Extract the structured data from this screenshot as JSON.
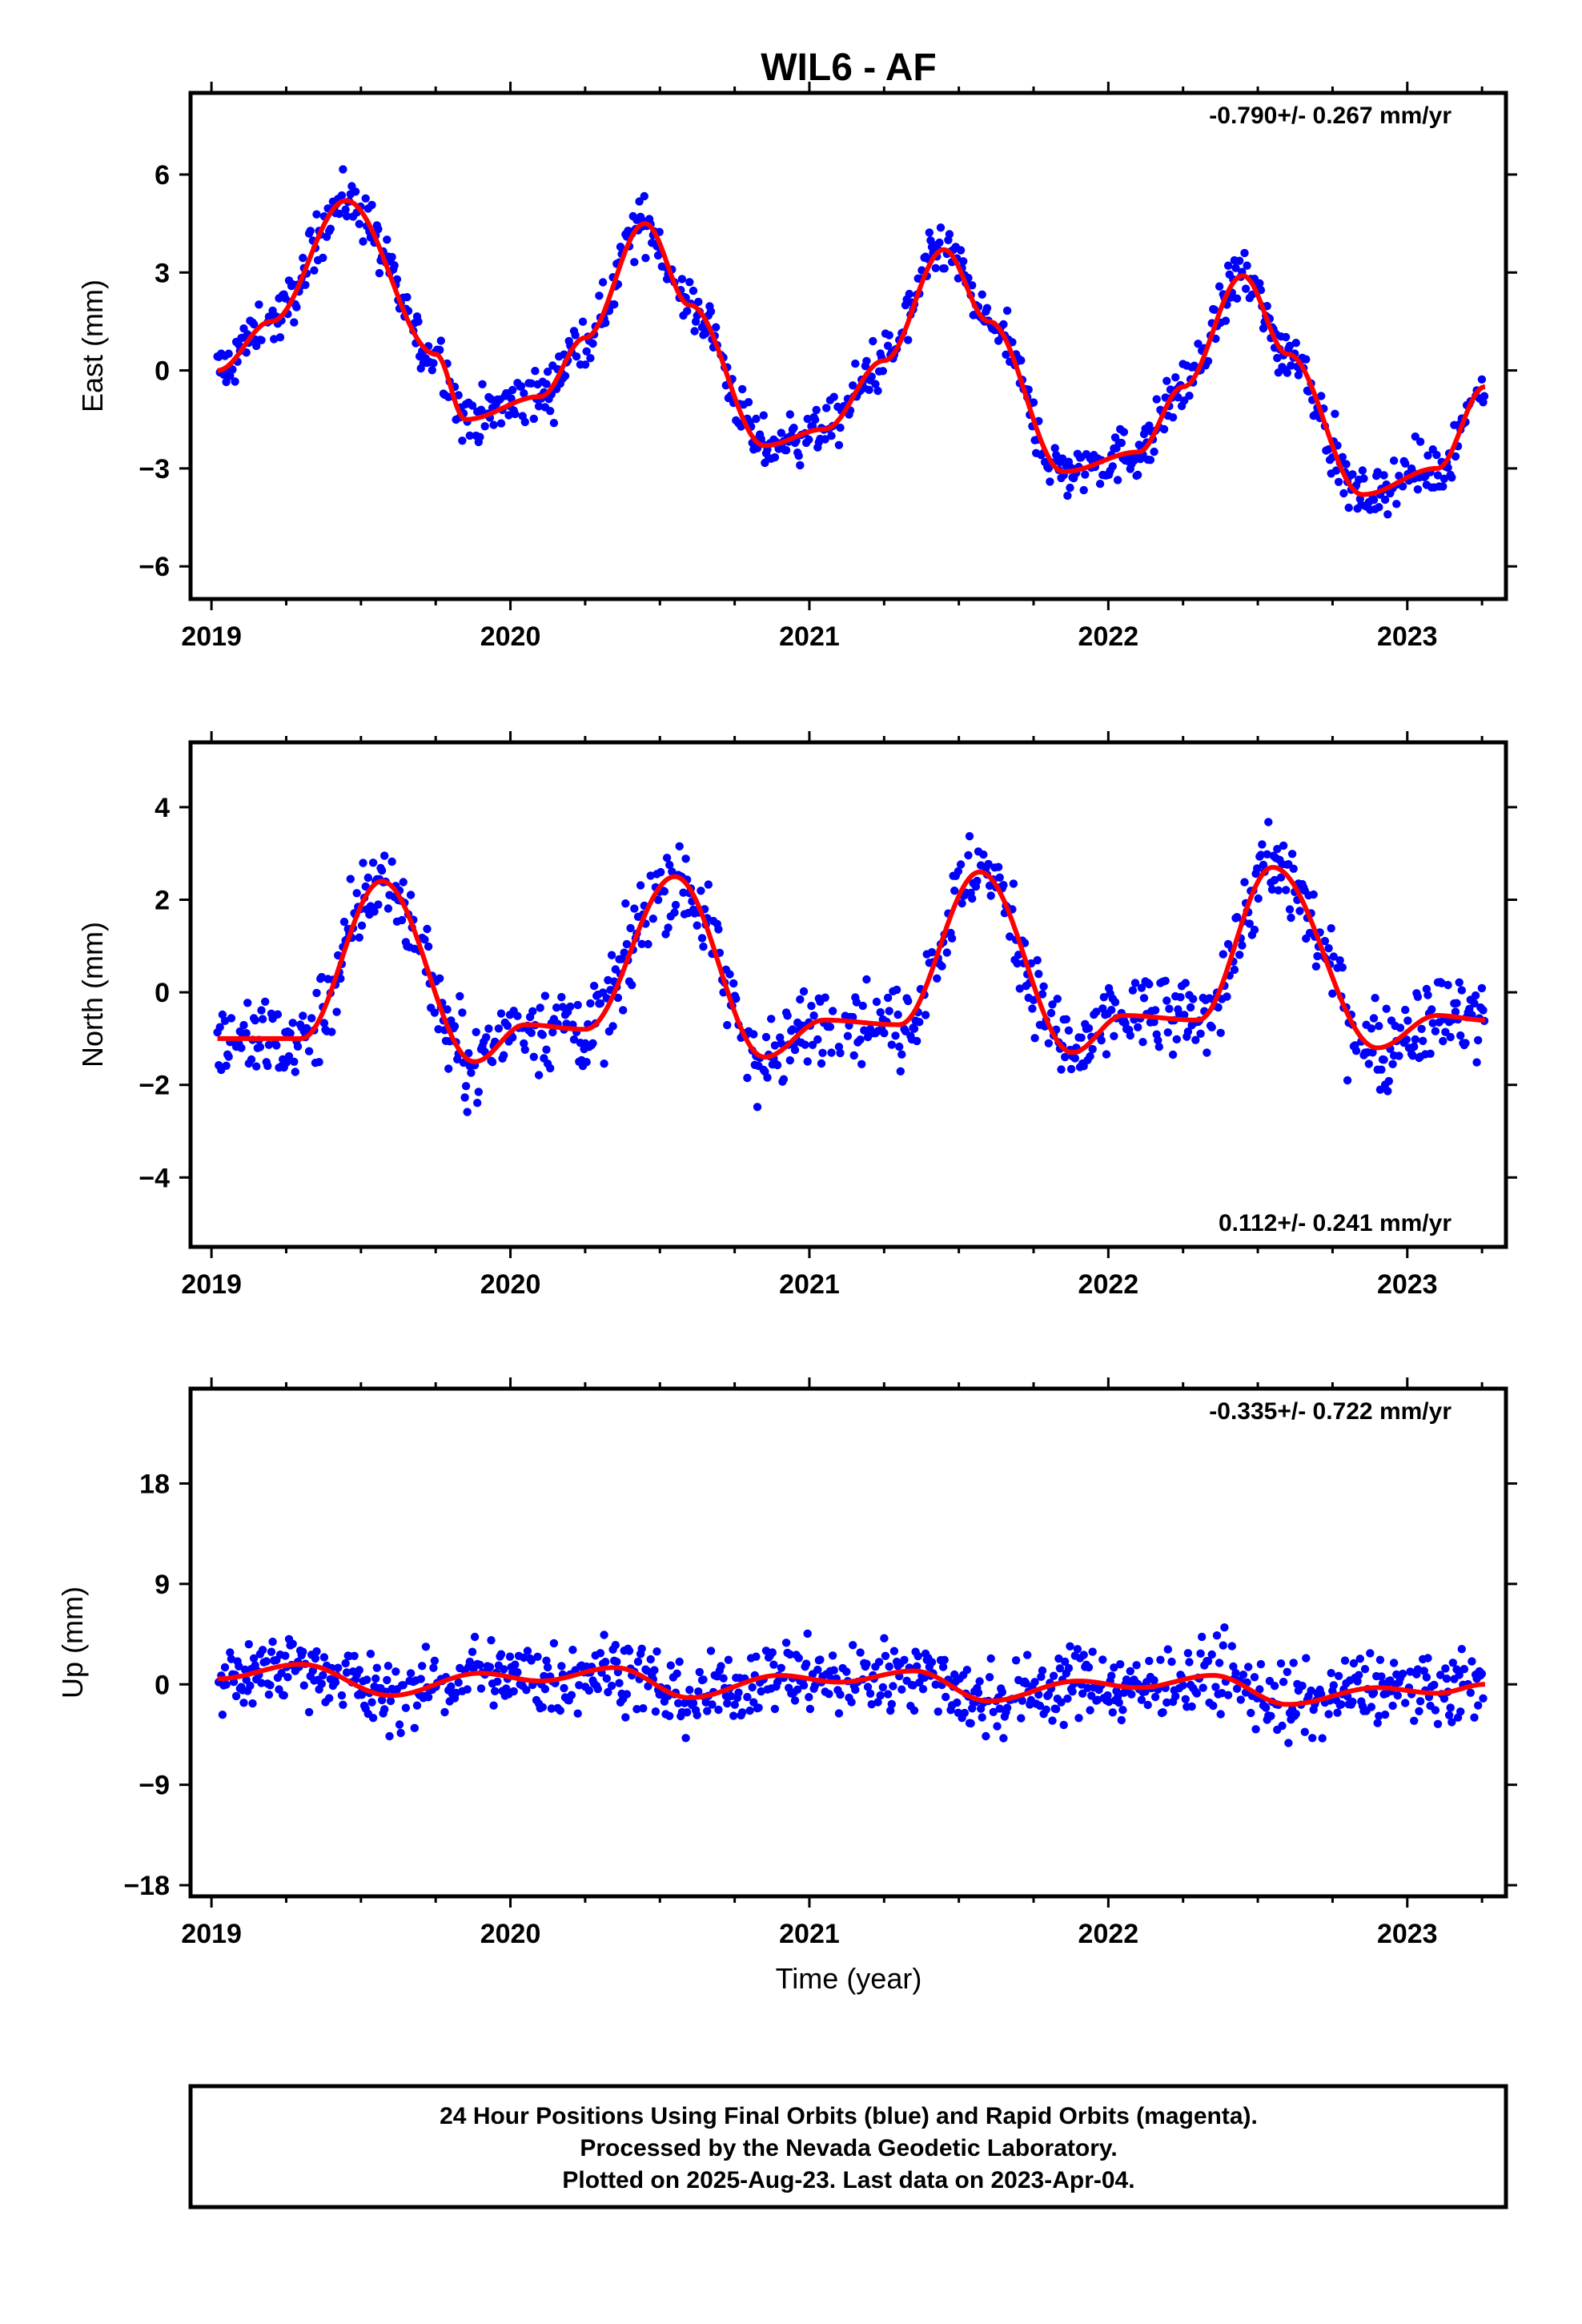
{
  "title": "WIL6 - AF",
  "colors": {
    "points": "#0000ff",
    "fit": "#ff0000",
    "frame": "#000000"
  },
  "xlabel": "Time (year)",
  "x_ticks": [
    "2019",
    "2020",
    "2021",
    "2022",
    "2023"
  ],
  "footer": [
    "24 Hour Positions Using Final Orbits (blue) and Rapid Orbits (magenta).",
    "Processed by the Nevada Geodetic Laboratory.",
    "Plotted on 2025-Aug-23. Last data on 2023-Apr-04."
  ],
  "chart_data": [
    {
      "type": "scatter",
      "ylabel": "East (mm)",
      "rate_text": "-0.790+/- 0.267 mm/yr",
      "rate_position": "top-right",
      "xlim": [
        2018.93,
        2023.33
      ],
      "ylim": [
        -7.0,
        8.5
      ],
      "yticks": [
        -6,
        -3,
        0,
        3,
        6
      ],
      "x": [
        2019.02,
        2019.2,
        2019.45,
        2019.75,
        2019.85,
        2020.1,
        2020.25,
        2020.45,
        2020.6,
        2020.85,
        2021.05,
        2021.25,
        2021.45,
        2021.6,
        2021.85,
        2022.1,
        2022.25,
        2022.45,
        2022.6,
        2022.85,
        2023.1,
        2023.26
      ],
      "y": [
        0.0,
        1.5,
        5.2,
        0.5,
        -1.5,
        -0.8,
        1.0,
        4.5,
        2.0,
        -2.3,
        -1.8,
        0.3,
        3.7,
        1.5,
        -3.1,
        -2.5,
        -0.5,
        2.9,
        0.5,
        -3.8,
        -3.0,
        -0.5
      ],
      "series": [
        {
          "name": "24 Hour Positions (final orbits)",
          "role": "points",
          "amplitude_mm": 4.0,
          "offset_mm": 0.0,
          "noise_mm": 0.8
        },
        {
          "name": "model fit",
          "role": "fit"
        }
      ]
    },
    {
      "type": "scatter",
      "ylabel": "North (mm)",
      "rate_text": "0.112+/- 0.241 mm/yr",
      "rate_position": "bottom-right",
      "xlim": [
        2018.93,
        2023.33
      ],
      "ylim": [
        -5.5,
        5.4
      ],
      "yticks": [
        -4,
        -2,
        0,
        2,
        4
      ],
      "x": [
        2019.02,
        2019.3,
        2019.57,
        2019.88,
        2020.05,
        2020.25,
        2020.55,
        2020.85,
        2021.05,
        2021.3,
        2021.57,
        2021.88,
        2022.05,
        2022.3,
        2022.55,
        2022.9,
        2023.1,
        2023.26
      ],
      "y": [
        -1.0,
        -1.0,
        2.4,
        -1.5,
        -0.7,
        -0.8,
        2.5,
        -1.4,
        -0.6,
        -0.7,
        2.6,
        -1.3,
        -0.5,
        -0.6,
        2.7,
        -1.2,
        -0.5,
        -0.6
      ],
      "series": [
        {
          "name": "24 Hour Positions (final orbits)",
          "role": "points",
          "amplitude_mm": 1.8,
          "offset_mm": 0.0,
          "noise_mm": 0.9
        },
        {
          "name": "model fit",
          "role": "fit"
        }
      ]
    },
    {
      "type": "scatter",
      "ylabel": "Up (mm)",
      "rate_text": "-0.335+/- 0.722 mm/yr",
      "rate_position": "top-right",
      "xlim": [
        2018.93,
        2023.33
      ],
      "ylim": [
        -19.0,
        26.5
      ],
      "yticks": [
        -18,
        -9,
        0,
        9,
        18
      ],
      "x": [
        2019.02,
        2019.3,
        2019.6,
        2019.9,
        2020.1,
        2020.35,
        2020.6,
        2020.9,
        2021.1,
        2021.35,
        2021.6,
        2021.9,
        2022.1,
        2022.35,
        2022.6,
        2022.9,
        2023.1,
        2023.26
      ],
      "y": [
        0.5,
        1.8,
        -1.0,
        1.0,
        0.3,
        1.5,
        -1.2,
        0.8,
        0.2,
        1.2,
        -1.5,
        0.3,
        -0.3,
        0.8,
        -1.8,
        -0.3,
        -0.8,
        0.0
      ],
      "series": [
        {
          "name": "24 Hour Positions (final orbits)",
          "role": "points",
          "amplitude_mm": 1.2,
          "offset_mm": 0.0,
          "noise_mm": 3.2
        },
        {
          "name": "model fit",
          "role": "fit"
        }
      ]
    }
  ]
}
